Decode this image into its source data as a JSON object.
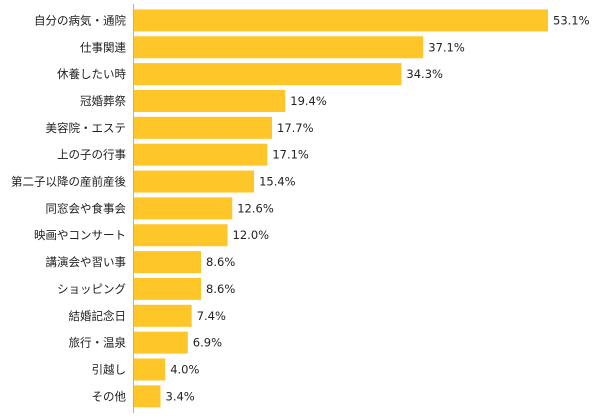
{
  "chart_data": {
    "type": "bar",
    "orientation": "horizontal",
    "categories": [
      "自分の病気・通院",
      "仕事関連",
      "休養したい時",
      "冠婚葬祭",
      "美容院・エステ",
      "上の子の行事",
      "第二子以降の産前産後",
      "同窓会や食事会",
      "映画やコンサート",
      "講演会や習い事",
      "ショッピング",
      "結婚記念日",
      "旅行・温泉",
      "引越し",
      "その他"
    ],
    "values": [
      53.1,
      37.1,
      34.3,
      19.4,
      17.7,
      17.1,
      15.4,
      12.6,
      12.0,
      8.6,
      8.6,
      7.4,
      6.9,
      4.0,
      3.4
    ],
    "value_labels": [
      "53.1%",
      "37.1%",
      "34.3%",
      "19.4%",
      "17.7%",
      "17.1%",
      "15.4%",
      "12.6%",
      "12.0%",
      "8.6%",
      "8.6%",
      "7.4%",
      "6.9%",
      "4.0%",
      "3.4%"
    ],
    "xlim": [
      0,
      53.1
    ],
    "grid": false,
    "colors": {
      "bar": "#FFC629",
      "text": "#222222",
      "axis": "#b0b0b0"
    }
  }
}
